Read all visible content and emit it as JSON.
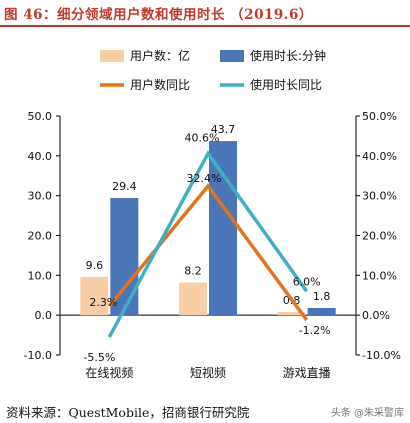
{
  "title": "图 46：细分领域用户数和使用时长 （2019.6）",
  "source": "资料来源：QuestMobile，招商银行研究院",
  "watermark": "头条 @朱采警库",
  "chart_data": {
    "type": "bar+line",
    "categories": [
      "在线视频",
      "短视频",
      "游戏直播"
    ],
    "bar_series": [
      {
        "name": "用户数：亿",
        "color": "#f9cda8",
        "values": [
          9.6,
          8.2,
          0.8
        ]
      },
      {
        "name": "使用时长:分钟",
        "color": "#4a76b8",
        "values": [
          29.4,
          43.7,
          1.8
        ]
      }
    ],
    "line_series": [
      {
        "name": "用户数同比",
        "color": "#e3731d",
        "values": [
          2.3,
          32.4,
          -1.2
        ]
      },
      {
        "name": "使用时长同比",
        "color": "#3fb0c4",
        "values": [
          -5.5,
          40.6,
          6.0
        ]
      }
    ],
    "bar_labels": [
      [
        "9.6",
        "8.2",
        "0.8"
      ],
      [
        "29.4",
        "43.7",
        "1.8"
      ]
    ],
    "line_labels": [
      [
        "2.3%",
        "32.4%",
        "-1.2%"
      ],
      [
        "-5.5%",
        "40.6%",
        "6.0%"
      ]
    ],
    "y_left": {
      "min": -10,
      "max": 50,
      "ticks": [
        "-10.0",
        "0.0",
        "10.0",
        "20.0",
        "30.0",
        "40.0",
        "50.0"
      ]
    },
    "y_right": {
      "min": -10,
      "max": 50,
      "ticks": [
        "-10.0%",
        "0.0%",
        "10.0%",
        "20.0%",
        "30.0%",
        "40.0%",
        "50.0%"
      ]
    },
    "legend": [
      "用户数：亿",
      "使用时长:分钟",
      "用户数同比",
      "使用时长同比"
    ],
    "legend_position": "top",
    "grid": false
  }
}
